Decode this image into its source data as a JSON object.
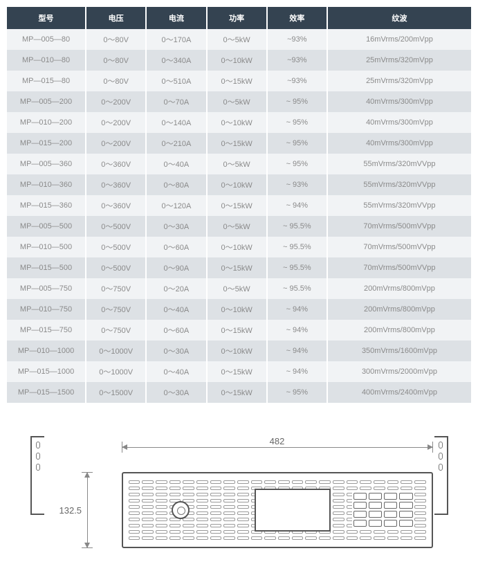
{
  "table": {
    "headers": [
      "型号",
      "电压",
      "电流",
      "功率",
      "效率",
      "纹波"
    ],
    "rows": [
      [
        "MP—005—80",
        "0～80V",
        "0～170A",
        "0～5kW",
        "~93%",
        "16mVrms/200mVpp"
      ],
      [
        "MP—010—80",
        "0～80V",
        "0～340A",
        "0～10kW",
        "~93%",
        "25mVrms/320mVpp"
      ],
      [
        "MP—015—80",
        "0～80V",
        "0～510A",
        "0～15kW",
        "~93%",
        "25mVrms/320mVpp"
      ],
      [
        "MP—005—200",
        "0～200V",
        "0～70A",
        "0～5kW",
        "~ 95%",
        "40mVrms/300mVpp"
      ],
      [
        "MP—010—200",
        "0～200V",
        "0～140A",
        "0～10kW",
        "~ 95%",
        "40mVrms/300mVpp"
      ],
      [
        "MP—015—200",
        "0～200V",
        "0～210A",
        "0～15kW",
        "~ 95%",
        "40mVrms/300mVpp"
      ],
      [
        "MP—005—360",
        "0～360V",
        "0～40A",
        "0～5kW",
        "~ 95%",
        "55mVrms/320mVVpp"
      ],
      [
        "MP—010—360",
        "0～360V",
        "0～80A",
        "0～10kW",
        "~ 93%",
        "55mVrms/320mVVpp"
      ],
      [
        "MP—015—360",
        "0～360V",
        "0～120A",
        "0～15kW",
        "~ 94%",
        "55mVrms/320mVVpp"
      ],
      [
        "MP—005—500",
        "0～500V",
        "0～30A",
        "0～5kW",
        "~ 95.5%",
        "70mVrms/500mVVpp"
      ],
      [
        "MP—010—500",
        "0～500V",
        "0～60A",
        "0～10kW",
        "~ 95.5%",
        "70mVrms/500mVVpp"
      ],
      [
        "MP—015—500",
        "0～500V",
        "0～90A",
        "0～15kW",
        "~ 95.5%",
        "70mVrms/500mVVpp"
      ],
      [
        "MP—005—750",
        "0～750V",
        "0～20A",
        "0～5kW",
        "~ 95.5%",
        "200mVrms/800mVpp"
      ],
      [
        "MP—010—750",
        "0～750V",
        "0～40A",
        "0～10kW",
        "~ 94%",
        "200mVrms/800mVpp"
      ],
      [
        "MP—015—750",
        "0～750V",
        "0～60A",
        "0～15kW",
        "~ 94%",
        "200mVrms/800mVpp"
      ],
      [
        "MP—010—1000",
        "0～1000V",
        "0～30A",
        "0～10kW",
        "~ 94%",
        "350mVrms/1600mVpp"
      ],
      [
        "MP—015—1000",
        "0～1000V",
        "0～40A",
        "0～15kW",
        "~ 94%",
        "300mVrms/2000mVpp"
      ],
      [
        "MP—015—1500",
        "0～1500V",
        "0～30A",
        "0～15kW",
        "~ 95%",
        "400mVrms/2400mVpp"
      ]
    ]
  },
  "diagram": {
    "width_label": "482",
    "height_label": "132.5"
  },
  "colors": {
    "header_bg": "#344351",
    "odd_row": "#f1f3f5",
    "even_row": "#dde1e5",
    "text_body": "#8a8a8a",
    "outline": "#555555"
  }
}
